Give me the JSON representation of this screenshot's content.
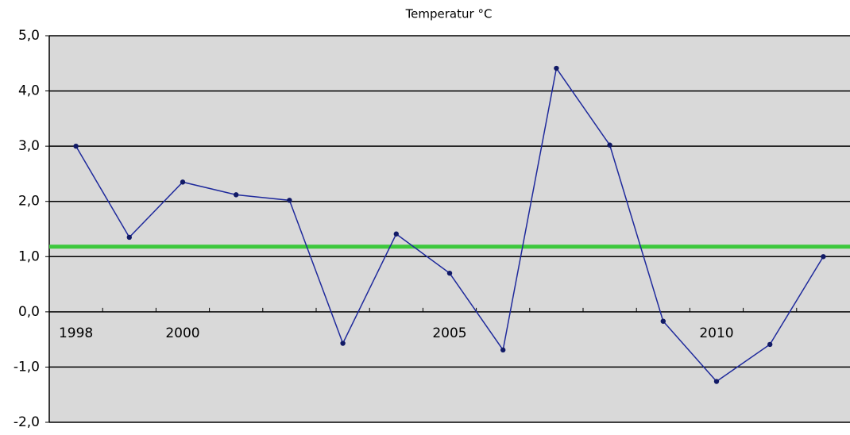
{
  "chart_data": {
    "type": "line",
    "title": "Temperatur °C",
    "categories": [
      "1998",
      null,
      "2000",
      null,
      null,
      null,
      null,
      "2005",
      null,
      null,
      null,
      null,
      "2010",
      null,
      null
    ],
    "series": [
      {
        "color": "#1f2a9c",
        "values": [
          3.0,
          1.35,
          2.35,
          2.12,
          2.02,
          -0.57,
          1.41,
          0.7,
          -0.69,
          4.41,
          3.02,
          -0.17,
          -1.26,
          -0.59,
          1.0
        ]
      }
    ],
    "reference_line": {
      "value": 1.18,
      "color": "#3cc83c"
    },
    "ylim": [
      -2,
      5
    ],
    "yticks": [
      {
        "value": -2,
        "label": "-2,0"
      },
      {
        "value": -1,
        "label": "-1,0"
      },
      {
        "value": 0,
        "label": "0,0"
      },
      {
        "value": 1,
        "label": "1,0"
      },
      {
        "value": 2,
        "label": "2,0"
      },
      {
        "value": 3,
        "label": "3,0"
      },
      {
        "value": 4,
        "label": "4,0"
      },
      {
        "value": 5,
        "label": "5,0"
      }
    ],
    "grid": true
  }
}
